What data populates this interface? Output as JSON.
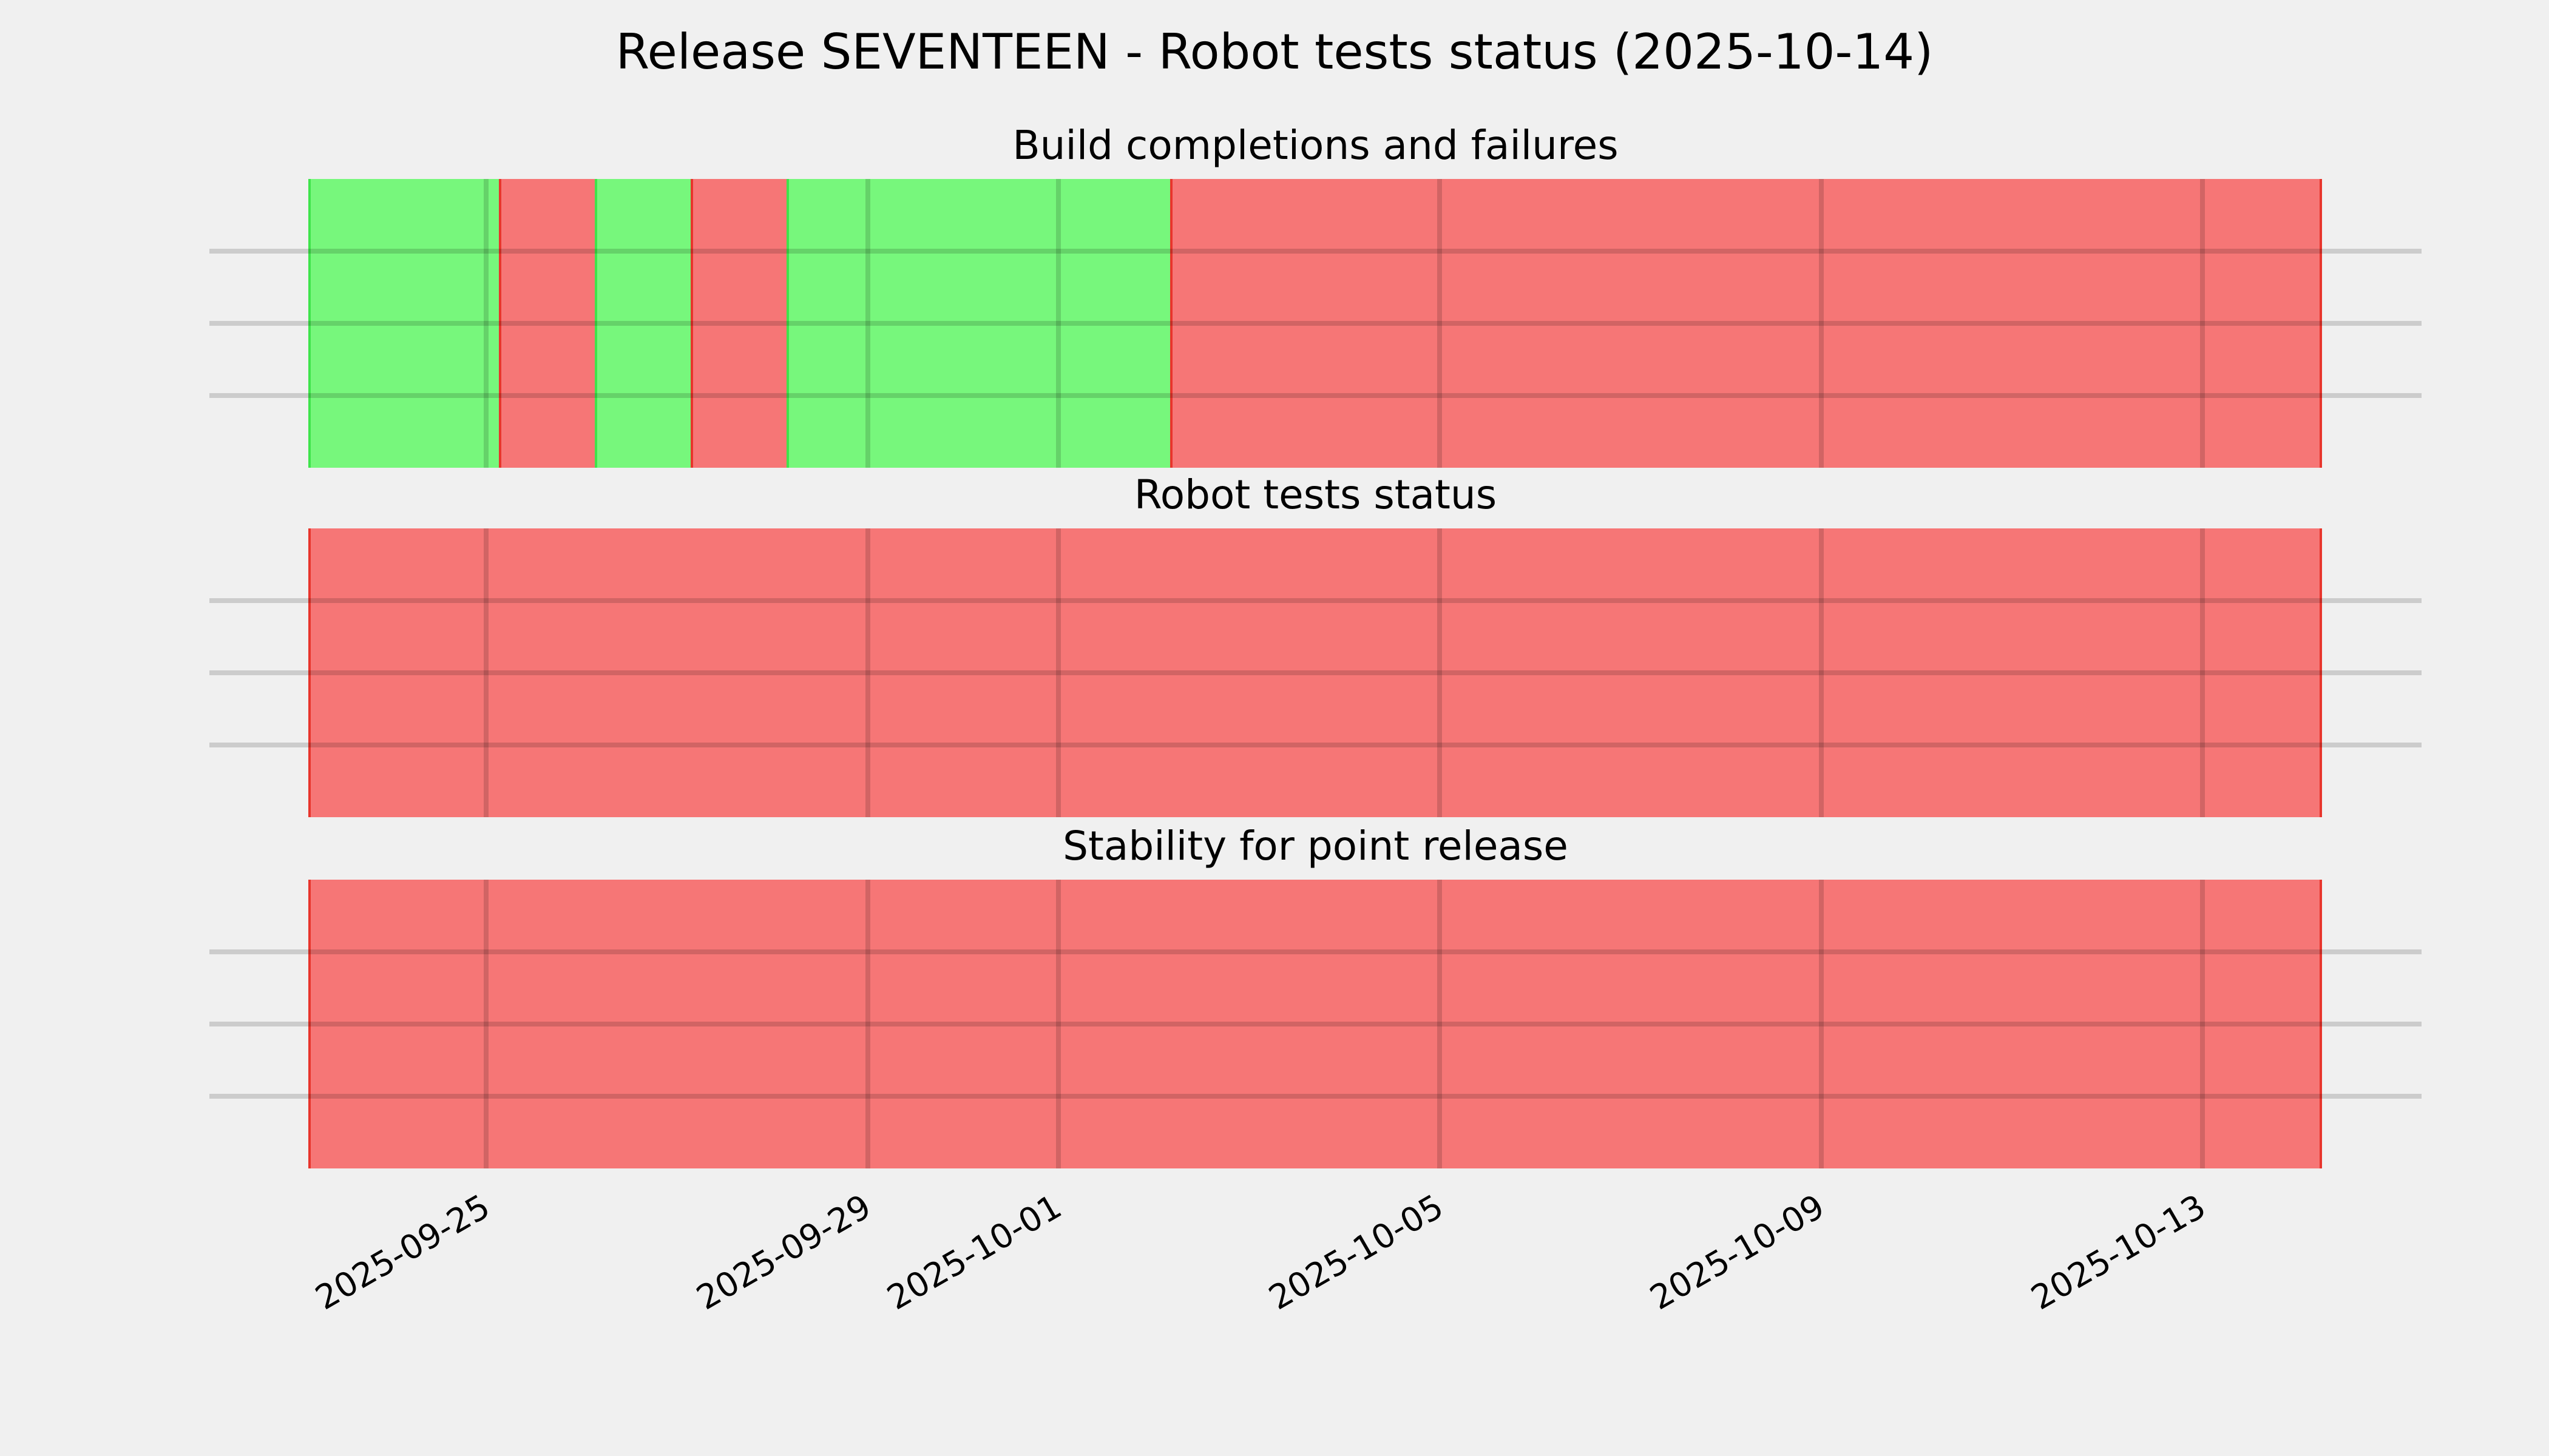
{
  "figure": {
    "title": "Release SEVENTEEN - Robot tests status (2025-10-14)",
    "background_color": "#f0f0f0",
    "gridline_color_over_background": "#cbcbcb",
    "text_color": "#000000"
  },
  "chart_data": {
    "type": "heatmap",
    "title": "Release SEVENTEEN - Robot tests status (2025-10-14)",
    "x": [
      "2025-09-23",
      "2025-09-24",
      "2025-09-25",
      "2025-09-26",
      "2025-09-27",
      "2025-09-28",
      "2025-09-29",
      "2025-09-30",
      "2025-10-01",
      "2025-10-02",
      "2025-10-03",
      "2025-10-04",
      "2025-10-05",
      "2025-10-06",
      "2025-10-07",
      "2025-10-08",
      "2025-10-09",
      "2025-10-10",
      "2025-10-11",
      "2025-10-12",
      "2025-10-13"
    ],
    "x_tick_labels": [
      "2025-09-25",
      "2025-09-29",
      "2025-10-01",
      "2025-10-05",
      "2025-10-09",
      "2025-10-13"
    ],
    "x_tick_day_index": [
      2,
      6,
      8,
      12,
      16,
      20
    ],
    "x_tick_rotation_deg": 30,
    "rows_per_band": 4,
    "grid": true,
    "legend_position": "none",
    "value_meaning": {
      "1": "success (green)",
      "0": "failure (red)"
    },
    "series": [
      {
        "name": "Build completions and failures",
        "values": [
          1,
          1,
          0,
          1,
          0,
          1,
          1,
          1,
          1,
          0,
          0,
          0,
          0,
          0,
          0,
          0,
          0,
          0,
          0,
          0,
          0
        ]
      },
      {
        "name": "Robot tests status",
        "values": [
          0,
          0,
          0,
          0,
          0,
          0,
          0,
          0,
          0,
          0,
          0,
          0,
          0,
          0,
          0,
          0,
          0,
          0,
          0,
          0,
          0
        ]
      },
      {
        "name": "Stability for point release",
        "values": [
          0,
          0,
          0,
          0,
          0,
          0,
          0,
          0,
          0,
          0,
          0,
          0,
          0,
          0,
          0,
          0,
          0,
          0,
          0,
          0,
          0
        ]
      }
    ],
    "colors": {
      "success_fill": "#77f77c",
      "failure_fill": "#f67676",
      "success_edge": "#3fe44b",
      "failure_edge": "#e8352c",
      "background": "#f0f0f0"
    }
  }
}
